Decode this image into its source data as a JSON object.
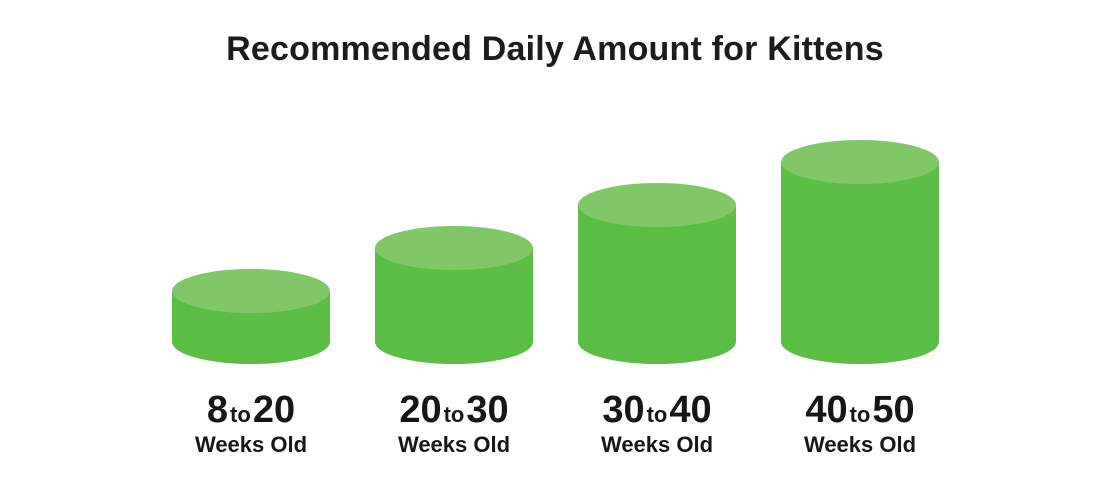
{
  "chart_data": {
    "type": "bar",
    "style": "3d-cylinder",
    "title": "Recommended Daily Amount for Kittens",
    "xlabel": "",
    "ylabel": "",
    "grid": false,
    "legend": "none",
    "categories": [
      {
        "from": "8",
        "sep": "to",
        "to": "20",
        "unit": "Weeks Old"
      },
      {
        "from": "20",
        "sep": "to",
        "to": "30",
        "unit": "Weeks Old"
      },
      {
        "from": "30",
        "sep": "to",
        "to": "40",
        "unit": "Weeks Old"
      },
      {
        "from": "40",
        "sep": "to",
        "to": "50",
        "unit": "Weeks Old"
      }
    ],
    "values": [
      1,
      2,
      3,
      4
    ],
    "colors": {
      "body": "#5cbd46",
      "top": "#80c768"
    }
  }
}
